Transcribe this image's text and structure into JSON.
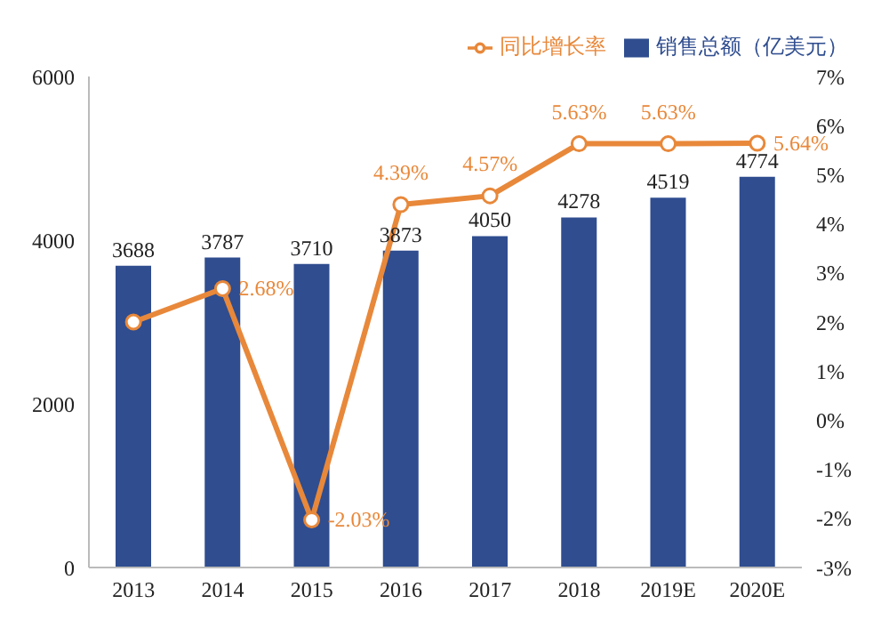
{
  "chart_data": {
    "type": "bar",
    "categories": [
      "2013",
      "2014",
      "2015",
      "2016",
      "2017",
      "2018",
      "2019E",
      "2020E"
    ],
    "series": [
      {
        "name": "销售总额（亿美元）",
        "color": "#2f4d8f",
        "values": [
          3688,
          3787,
          3710,
          3873,
          4050,
          4278,
          4519,
          4774
        ],
        "data_labels": true
      },
      {
        "name": "同比增长率",
        "type": "line",
        "axis": "y2",
        "color": "#e8883a",
        "marker": "circle",
        "values": [
          2.0,
          2.68,
          -2.03,
          4.39,
          4.57,
          5.63,
          5.63,
          5.64
        ],
        "value_labels": [
          null,
          "2.68%",
          "-2.03%",
          "4.39%",
          "4.57%",
          "5.63%",
          "5.63%",
          "5.64%"
        ]
      }
    ],
    "ylim": [
      0,
      6000
    ],
    "yticks": [
      0,
      2000,
      4000,
      6000
    ],
    "y2lim": [
      -3,
      7
    ],
    "y2ticks": [
      {
        "value": -3,
        "label": "-3%"
      },
      {
        "value": -2,
        "label": "-2%"
      },
      {
        "value": -1,
        "label": "-1%"
      },
      {
        "value": 0,
        "label": "0%"
      },
      {
        "value": 1,
        "label": "1%"
      },
      {
        "value": 2,
        "label": "2%"
      },
      {
        "value": 3,
        "label": "3%"
      },
      {
        "value": 4,
        "label": "4%"
      },
      {
        "value": 5,
        "label": "5%"
      },
      {
        "value": 6,
        "label": "6%"
      },
      {
        "value": 7,
        "label": "7%"
      }
    ],
    "grid": false,
    "legend": "top right"
  }
}
